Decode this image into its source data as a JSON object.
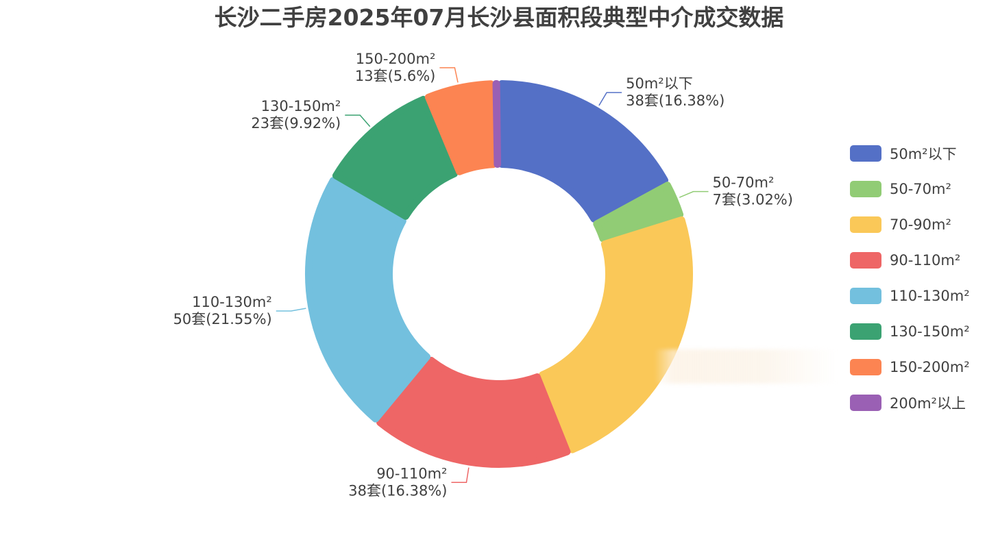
{
  "chart_data": {
    "type": "pie",
    "title": "长沙二手房2025年07月长沙县面积段典型中介成交数据",
    "unit": "套",
    "legend_position": "right",
    "slices": [
      {
        "name": "50m²以下",
        "value": 38,
        "percent": "16.38%",
        "color": "#5470c6"
      },
      {
        "name": "50-70m²",
        "value": 7,
        "percent": "3.02%",
        "color": "#91cc75"
      },
      {
        "name": "70-90m²",
        "value": 53,
        "percent": "22.84%",
        "color": "#fac858"
      },
      {
        "name": "90-110m²",
        "value": 38,
        "percent": "16.38%",
        "color": "#ee6666"
      },
      {
        "name": "110-130m²",
        "value": 50,
        "percent": "21.55%",
        "color": "#73c0de"
      },
      {
        "name": "130-150m²",
        "value": 23,
        "percent": "9.92%",
        "color": "#3ba272"
      },
      {
        "name": "150-200m²",
        "value": 13,
        "percent": "5.6%",
        "color": "#fc8452"
      },
      {
        "name": "200m²以上",
        "value": 1,
        "percent": "0.43%",
        "color": "#9a60b4"
      }
    ],
    "shown_labels": [
      {
        "line1": "50m²以下",
        "line2": "38套(16.38%)"
      },
      {
        "line1": "50-70m²",
        "line2": "7套(3.02%)"
      },
      {
        "line1": "90-110m²",
        "line2": "38套(16.38%)"
      },
      {
        "line1": "110-130m²",
        "line2": "50套(21.55%)"
      },
      {
        "line1": "130-150m²",
        "line2": "23套(9.92%)"
      },
      {
        "line1": "150-200m²",
        "line2": "13套(5.6%)"
      }
    ]
  }
}
